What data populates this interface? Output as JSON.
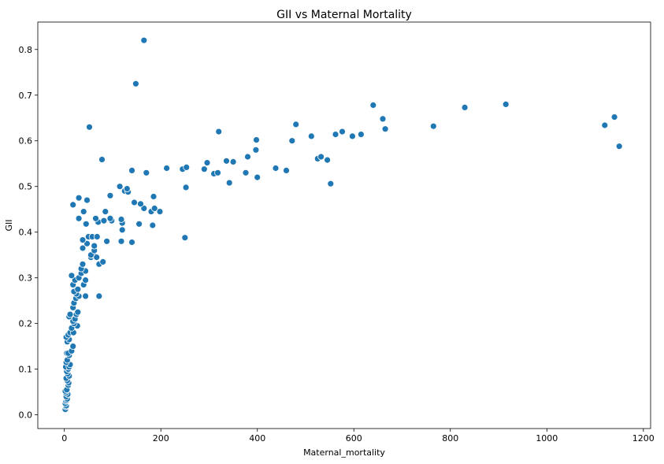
{
  "chart_data": {
    "type": "scatter",
    "title": "GII vs Maternal Mortality",
    "xlabel": "Maternal_mortality",
    "ylabel": "GII",
    "xlim": [
      -55,
      1215
    ],
    "ylim": [
      -0.03,
      0.86
    ],
    "xticks": [
      0,
      200,
      400,
      600,
      800,
      1000,
      1200
    ],
    "yticks": [
      0.0,
      0.1,
      0.2,
      0.3,
      0.4,
      0.5,
      0.6,
      0.7,
      0.8
    ],
    "grid": false,
    "marker_color": "#1f77b4",
    "marker_edge": "#ffffff",
    "points": [
      [
        2,
        0.012
      ],
      [
        3,
        0.018
      ],
      [
        4,
        0.02
      ],
      [
        2,
        0.025
      ],
      [
        3,
        0.03
      ],
      [
        5,
        0.032
      ],
      [
        6,
        0.035
      ],
      [
        4,
        0.04
      ],
      [
        7,
        0.045
      ],
      [
        3,
        0.048
      ],
      [
        2,
        0.052
      ],
      [
        5,
        0.055
      ],
      [
        8,
        0.065
      ],
      [
        9,
        0.07
      ],
      [
        6,
        0.075
      ],
      [
        4,
        0.08
      ],
      [
        10,
        0.085
      ],
      [
        7,
        0.09
      ],
      [
        5,
        0.095
      ],
      [
        8,
        0.1
      ],
      [
        3,
        0.105
      ],
      [
        10,
        0.105
      ],
      [
        12,
        0.11
      ],
      [
        4,
        0.115
      ],
      [
        6,
        0.12
      ],
      [
        10,
        0.13
      ],
      [
        5,
        0.135
      ],
      [
        8,
        0.135
      ],
      [
        15,
        0.14
      ],
      [
        18,
        0.15
      ],
      [
        6,
        0.16
      ],
      [
        10,
        0.165
      ],
      [
        4,
        0.17
      ],
      [
        8,
        0.175
      ],
      [
        12,
        0.18
      ],
      [
        19,
        0.18
      ],
      [
        15,
        0.19
      ],
      [
        27,
        0.195
      ],
      [
        20,
        0.2
      ],
      [
        18,
        0.205
      ],
      [
        22,
        0.21
      ],
      [
        10,
        0.215
      ],
      [
        25,
        0.22
      ],
      [
        12,
        0.22
      ],
      [
        28,
        0.225
      ],
      [
        18,
        0.235
      ],
      [
        20,
        0.245
      ],
      [
        24,
        0.255
      ],
      [
        30,
        0.26
      ],
      [
        25,
        0.265
      ],
      [
        44,
        0.26
      ],
      [
        72,
        0.26
      ],
      [
        20,
        0.27
      ],
      [
        28,
        0.275
      ],
      [
        18,
        0.285
      ],
      [
        40,
        0.285
      ],
      [
        22,
        0.295
      ],
      [
        44,
        0.295
      ],
      [
        30,
        0.3
      ],
      [
        15,
        0.305
      ],
      [
        35,
        0.31
      ],
      [
        44,
        0.315
      ],
      [
        35,
        0.32
      ],
      [
        38,
        0.33
      ],
      [
        72,
        0.33
      ],
      [
        80,
        0.335
      ],
      [
        55,
        0.345
      ],
      [
        60,
        0.35
      ],
      [
        67,
        0.345
      ],
      [
        55,
        0.35
      ],
      [
        62,
        0.36
      ],
      [
        38,
        0.365
      ],
      [
        62,
        0.37
      ],
      [
        47,
        0.375
      ],
      [
        88,
        0.38
      ],
      [
        118,
        0.38
      ],
      [
        140,
        0.378
      ],
      [
        38,
        0.383
      ],
      [
        50,
        0.39
      ],
      [
        58,
        0.39
      ],
      [
        68,
        0.39
      ],
      [
        250,
        0.388
      ],
      [
        120,
        0.405
      ],
      [
        183,
        0.415
      ],
      [
        45,
        0.418
      ],
      [
        155,
        0.418
      ],
      [
        70,
        0.422
      ],
      [
        82,
        0.425
      ],
      [
        98,
        0.425
      ],
      [
        120,
        0.42
      ],
      [
        118,
        0.428
      ],
      [
        95,
        0.43
      ],
      [
        65,
        0.43
      ],
      [
        30,
        0.43
      ],
      [
        85,
        0.445
      ],
      [
        180,
        0.445
      ],
      [
        40,
        0.445
      ],
      [
        198,
        0.445
      ],
      [
        165,
        0.452
      ],
      [
        187,
        0.452
      ],
      [
        145,
        0.465
      ],
      [
        158,
        0.462
      ],
      [
        18,
        0.46
      ],
      [
        47,
        0.47
      ],
      [
        30,
        0.475
      ],
      [
        185,
        0.478
      ],
      [
        95,
        0.48
      ],
      [
        125,
        0.49
      ],
      [
        132,
        0.488
      ],
      [
        130,
        0.495
      ],
      [
        115,
        0.5
      ],
      [
        252,
        0.498
      ],
      [
        170,
        0.53
      ],
      [
        140,
        0.535
      ],
      [
        212,
        0.54
      ],
      [
        245,
        0.538
      ],
      [
        253,
        0.542
      ],
      [
        290,
        0.538
      ],
      [
        296,
        0.552
      ],
      [
        310,
        0.528
      ],
      [
        318,
        0.53
      ],
      [
        342,
        0.508
      ],
      [
        336,
        0.556
      ],
      [
        350,
        0.554
      ],
      [
        376,
        0.53
      ],
      [
        380,
        0.565
      ],
      [
        400,
        0.52
      ],
      [
        397,
        0.58
      ],
      [
        398,
        0.602
      ],
      [
        438,
        0.54
      ],
      [
        460,
        0.535
      ],
      [
        472,
        0.6
      ],
      [
        480,
        0.636
      ],
      [
        512,
        0.61
      ],
      [
        525,
        0.561
      ],
      [
        532,
        0.565
      ],
      [
        545,
        0.558
      ],
      [
        552,
        0.506
      ],
      [
        562,
        0.614
      ],
      [
        576,
        0.62
      ],
      [
        597,
        0.61
      ],
      [
        615,
        0.614
      ],
      [
        640,
        0.678
      ],
      [
        660,
        0.648
      ],
      [
        665,
        0.626
      ],
      [
        765,
        0.632
      ],
      [
        830,
        0.673
      ],
      [
        915,
        0.68
      ],
      [
        1120,
        0.634
      ],
      [
        1140,
        0.652
      ],
      [
        1150,
        0.588
      ],
      [
        52,
        0.63
      ],
      [
        78,
        0.559
      ],
      [
        148,
        0.725
      ],
      [
        165,
        0.82
      ],
      [
        320,
        0.62
      ]
    ]
  }
}
